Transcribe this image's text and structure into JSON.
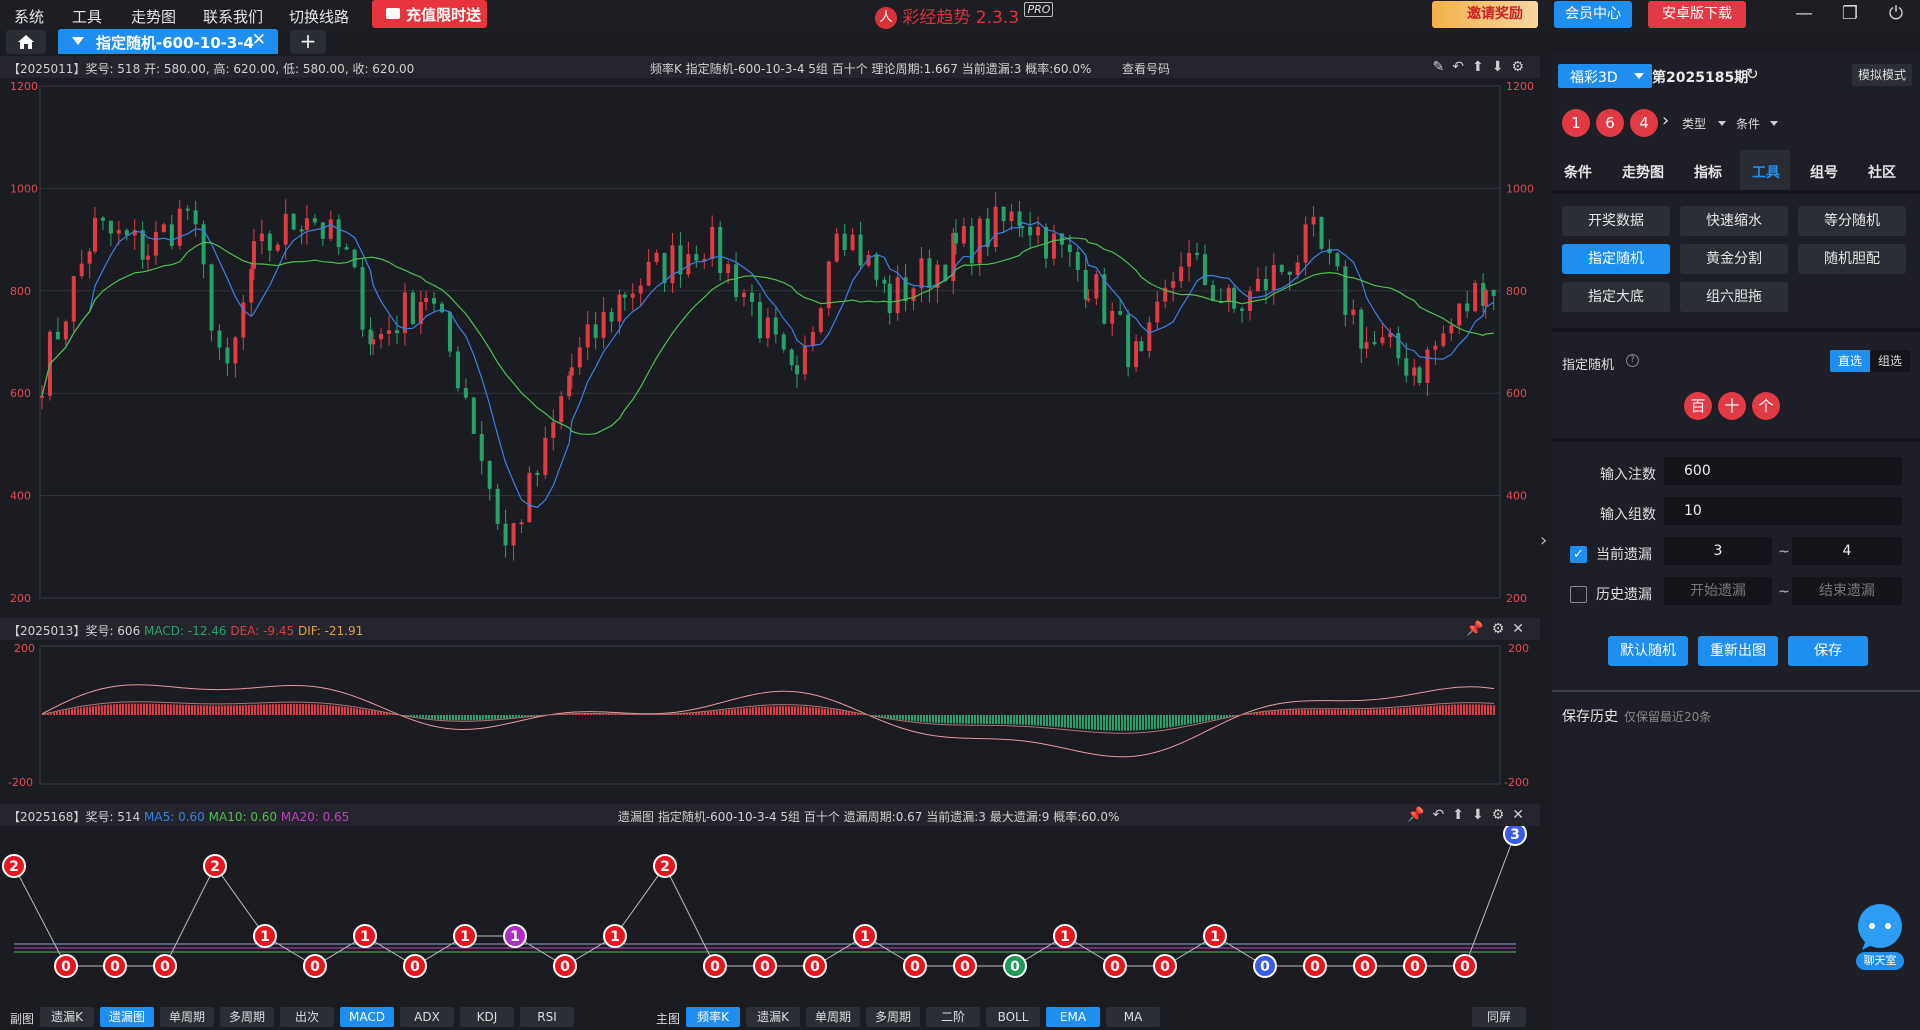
{
  "menu": [
    "系统",
    "工具",
    "走势图",
    "联系我们",
    "切换线路"
  ],
  "promo_label": "充值限时送",
  "app_title": "彩经趋势 2.3.3",
  "app_badge": "PRO",
  "top_buttons": {
    "invite": "邀请奖励",
    "member": "会员中心",
    "android": "安卓版下载"
  },
  "colors": {
    "accent": "#1e8ef0",
    "red": "#e23a44",
    "green": "#23a36a",
    "ma_blue": "#3b7fe0",
    "ma_green": "#4fbf4f"
  },
  "tab": {
    "label": "指定随机-600-10-3-4"
  },
  "main_chart": {
    "info": "【2025011】奖号: 518   开: 580.00, 高: 620.00, 低: 580.00, 收: 620.00",
    "center": "频率K  指定随机-600-10-3-4  5组  百十个  理论周期:1.667  当前遗漏:3  概率:60.0%",
    "view_numbers": "查看号码",
    "y_ticks": [
      "1200",
      "1000",
      "800",
      "600",
      "400",
      "200"
    ]
  },
  "macd_chart": {
    "info_prefix": "【2025013】奖号: 606",
    "macd": "MACD: -12.46",
    "dea": "DEA: -9.45",
    "dif": "DIF: -21.91",
    "y_ticks": [
      "200",
      "-200"
    ]
  },
  "miss_chart": {
    "info_prefix": "【2025168】奖号: 514",
    "ma5": "MA5: 0.60",
    "ma10": "MA10: 0.60",
    "ma20": "MA20: 0.65",
    "center": "遗漏图  指定随机-600-10-3-4  5组  百十个  遗漏周期:0.67  当前遗漏:3  最大遗漏:9  概率:60.0%"
  },
  "bottom_bar": {
    "sub_label": "副图",
    "sub_buttons": [
      "遗漏K",
      "遗漏图",
      "单周期",
      "多周期",
      "出次",
      "MACD",
      "ADX",
      "KDJ",
      "RSI"
    ],
    "main_label": "主图",
    "main_buttons": [
      "频率K",
      "遗漏K",
      "单周期",
      "多周期",
      "二阶",
      "BOLL",
      "EMA",
      "MA"
    ],
    "sync": "同屏"
  },
  "side": {
    "lottery": "福彩3D",
    "period": "第2025185期",
    "mode": "模拟模式",
    "balls": [
      "1",
      "6",
      "4"
    ],
    "filter_type": "类型",
    "filter_cond": "条件",
    "tabs": [
      "条件",
      "走势图",
      "指标",
      "工具",
      "组号",
      "社区"
    ],
    "tools": [
      "开奖数据",
      "快速缩水",
      "等分随机",
      "指定随机",
      "黄金分割",
      "随机胆配",
      "指定大底",
      "组六胆拖"
    ],
    "section_title": "指定随机",
    "toggle": [
      "直选",
      "组选"
    ],
    "position_balls": [
      "百",
      "十",
      "个"
    ],
    "form": {
      "bets_label": "输入注数",
      "bets_value": "600",
      "groups_label": "输入组数",
      "groups_value": "10",
      "cur_miss_label": "当前遗漏",
      "cur_miss_from": "3",
      "cur_miss_to": "4",
      "hist_miss_label": "历史遗漏",
      "hist_from_ph": "开始遗漏",
      "hist_to_ph": "结束遗漏",
      "tilde": "~"
    },
    "actions": [
      "默认随机",
      "重新出图",
      "保存"
    ],
    "save_history": "保存历史",
    "save_note": "仅保留最近20条",
    "chat": "聊天室"
  }
}
